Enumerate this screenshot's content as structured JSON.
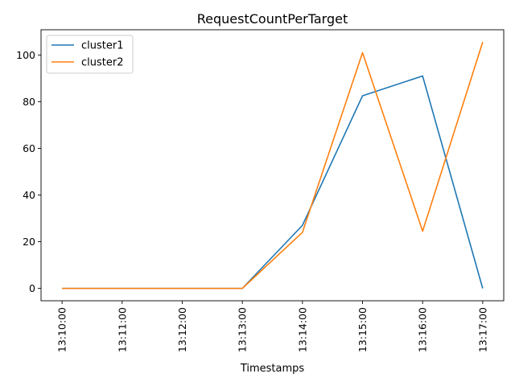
{
  "chart_data": {
    "type": "line",
    "title": "RequestCountPerTarget",
    "xlabel": "Timestamps",
    "ylabel": "",
    "categories": [
      "13:10:00",
      "13:11:00",
      "13:12:00",
      "13:13:00",
      "13:14:00",
      "13:15:00",
      "13:16:00",
      "13:17:00"
    ],
    "series": [
      {
        "name": "cluster1",
        "color": "#1f77b4",
        "values": [
          0,
          0,
          0,
          0,
          27,
          82.5,
          91,
          0
        ]
      },
      {
        "name": "cluster2",
        "color": "#ff7f0e",
        "values": [
          0,
          0,
          0,
          0,
          24,
          101,
          24.5,
          105.5
        ]
      }
    ],
    "ylim": [
      -5.3,
      110.8
    ],
    "yticks": [
      0,
      20,
      40,
      60,
      80,
      100
    ],
    "xtick_rotation": "vertical",
    "grid": false,
    "legend": "upper left"
  }
}
